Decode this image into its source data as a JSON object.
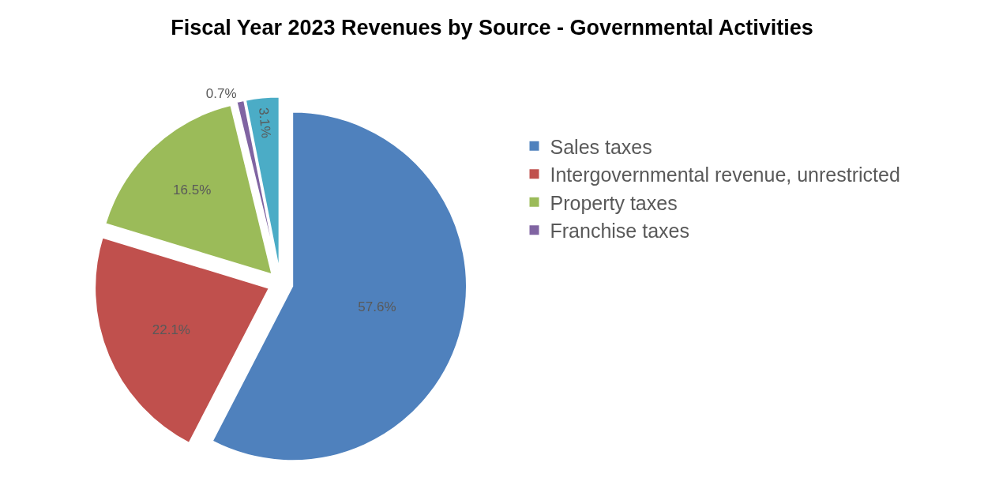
{
  "chart_data": {
    "type": "pie",
    "title": "Fiscal Year 2023 Revenues by Source - Governmental Activities",
    "categories": [
      "Sales taxes",
      "Intergovernmental revenue, unrestricted",
      "Property taxes",
      "Franchise taxes",
      null
    ],
    "values": [
      57.6,
      22.1,
      16.5,
      0.7,
      3.1
    ],
    "value_labels": [
      "57.6%",
      "22.1%",
      "16.5%",
      "0.7%",
      "3.1%"
    ],
    "colors": [
      "#4f81bd",
      "#c0504d",
      "#9bbb59",
      "#8064a2",
      "#4bacc6"
    ],
    "legend": "right"
  }
}
